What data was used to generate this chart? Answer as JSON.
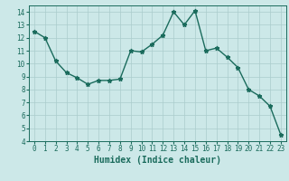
{
  "x": [
    0,
    1,
    2,
    3,
    4,
    5,
    6,
    7,
    8,
    9,
    10,
    11,
    12,
    13,
    14,
    15,
    16,
    17,
    18,
    19,
    20,
    21,
    22,
    23
  ],
  "y": [
    12.5,
    12.0,
    10.2,
    9.3,
    8.9,
    8.4,
    8.7,
    8.7,
    8.8,
    11.0,
    10.9,
    11.5,
    12.2,
    14.0,
    13.0,
    14.1,
    11.0,
    11.2,
    10.5,
    9.7,
    8.0,
    7.5,
    6.7,
    4.5
  ],
  "line_color": "#1a6b5c",
  "marker": "*",
  "marker_color": "#1a6b5c",
  "bg_color": "#cce8e8",
  "grid_color": "#aacccc",
  "xlabel": "Humidex (Indice chaleur)",
  "xlim": [
    -0.5,
    23.5
  ],
  "ylim": [
    4,
    14.5
  ],
  "yticks": [
    4,
    5,
    6,
    7,
    8,
    9,
    10,
    11,
    12,
    13,
    14
  ],
  "xticks": [
    0,
    1,
    2,
    3,
    4,
    5,
    6,
    7,
    8,
    9,
    10,
    11,
    12,
    13,
    14,
    15,
    16,
    17,
    18,
    19,
    20,
    21,
    22,
    23
  ],
  "tick_label_fontsize": 5.5,
  "xlabel_fontsize": 7.0,
  "line_width": 1.0,
  "marker_size": 3.5
}
